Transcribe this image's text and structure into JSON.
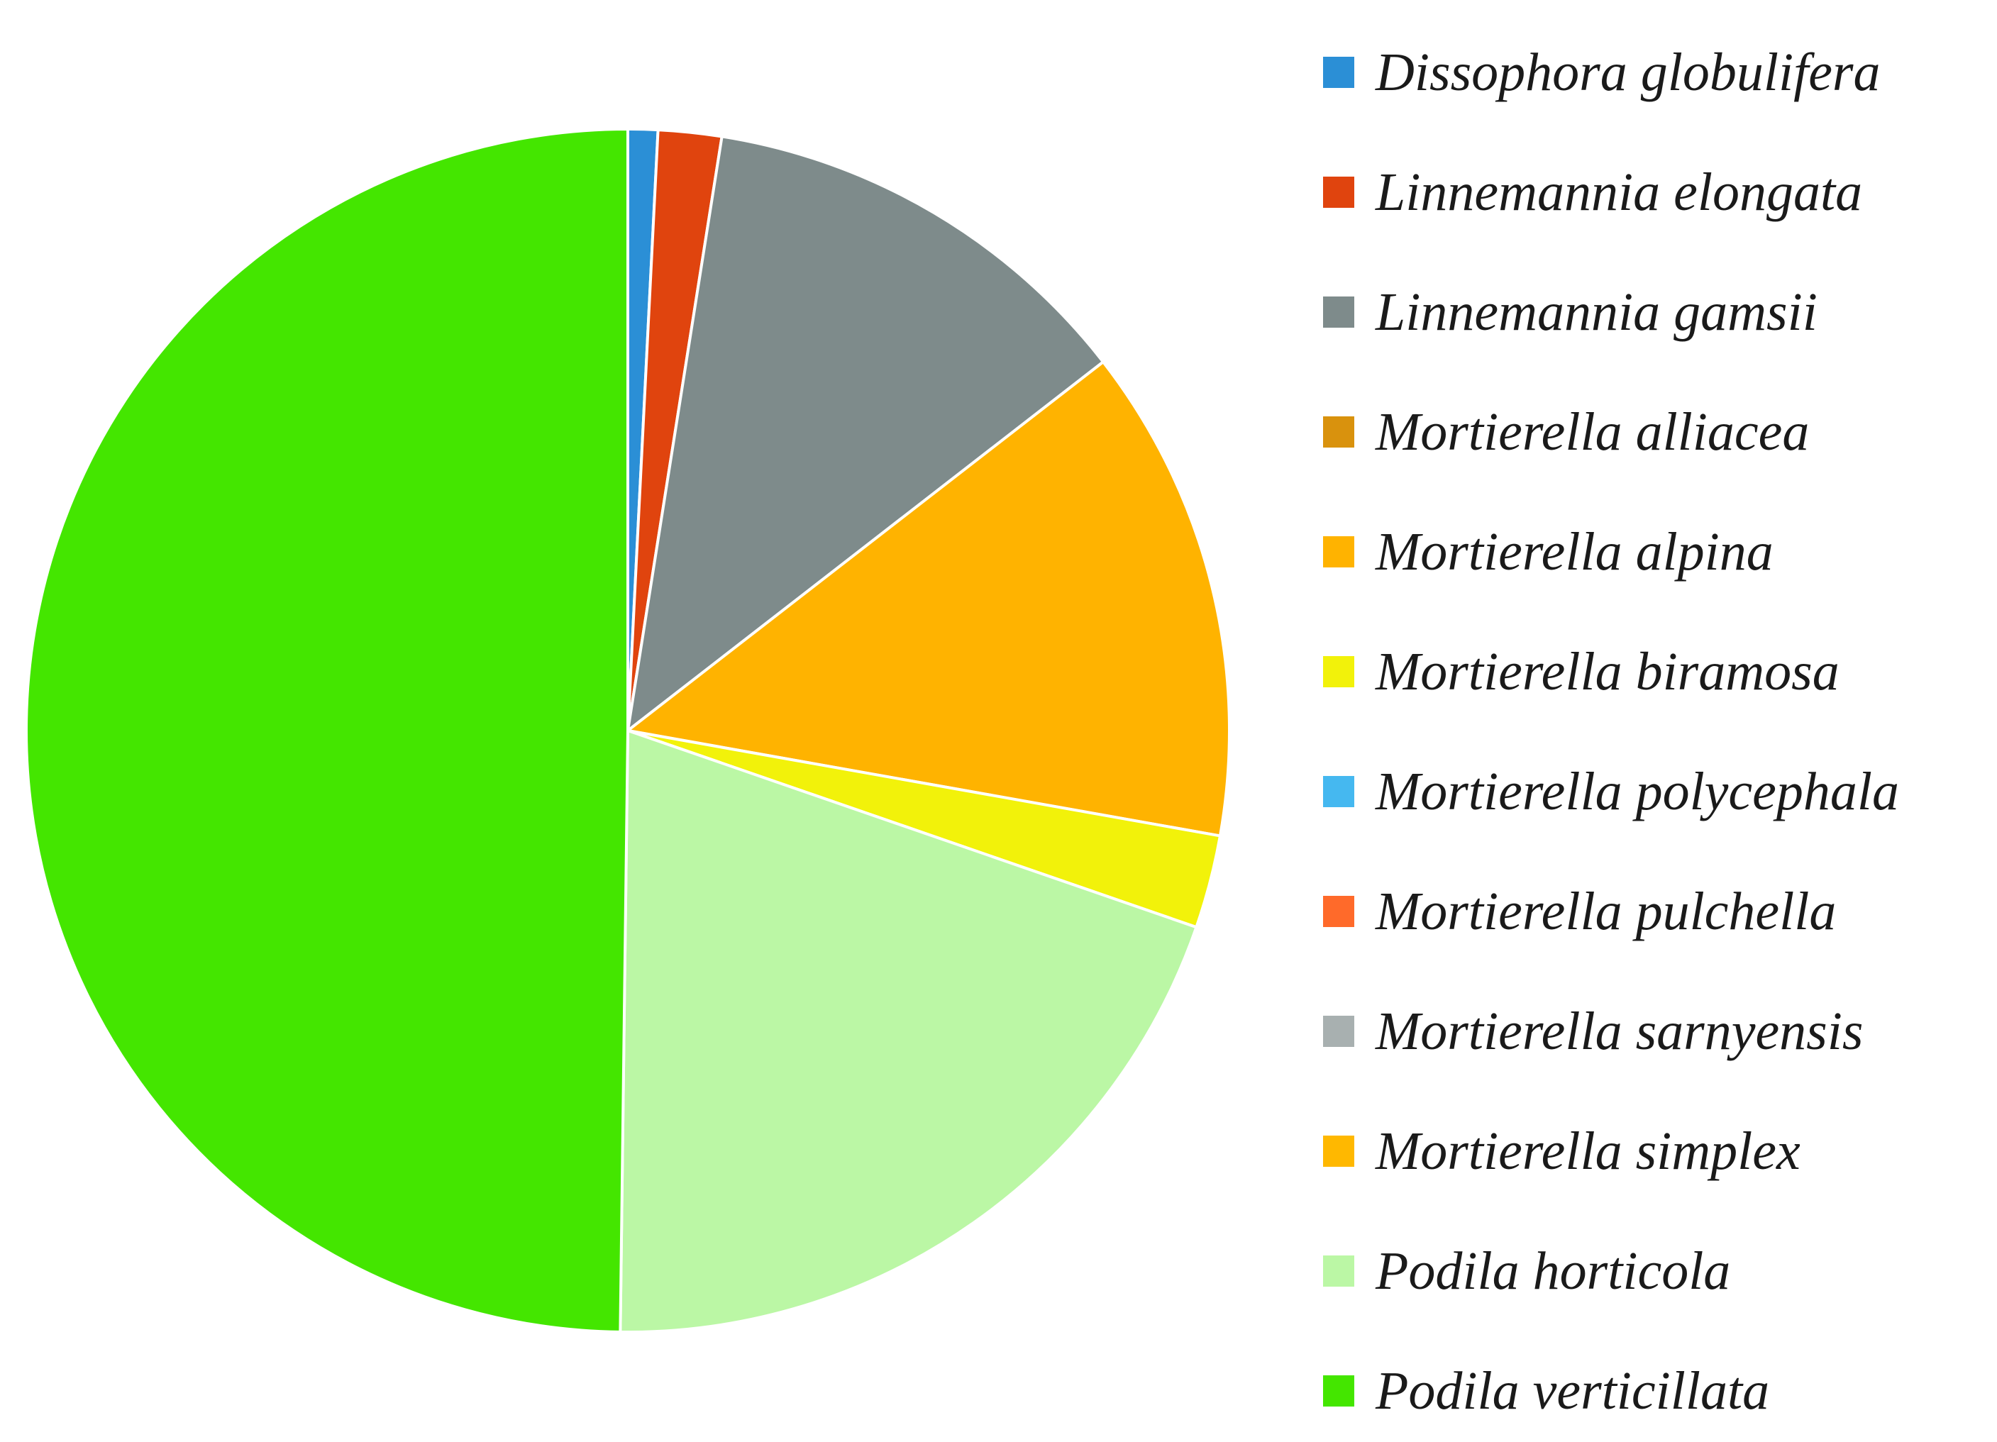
{
  "chart_data": {
    "type": "pie",
    "title": "",
    "slices": [
      {
        "label": "Dissophora globulifera",
        "value": 0.8,
        "color": "#2b8fd6"
      },
      {
        "label": "Linnemannia elongata",
        "value": 1.7,
        "color": "#e0440e"
      },
      {
        "label": "Linnemannia gamsii",
        "value": 12.0,
        "color": "#7e8b8b"
      },
      {
        "label": "Mortierella alliacea",
        "value": 0.0,
        "color": "#d9920d"
      },
      {
        "label": "Mortierella alpina",
        "value": 13.3,
        "color": "#ffb300"
      },
      {
        "label": "Mortierella biramosa",
        "value": 2.5,
        "color": "#f2f20a"
      },
      {
        "label": "Mortierella polycephala",
        "value": 0.0,
        "color": "#45b8f0"
      },
      {
        "label": "Mortierella pulchella",
        "value": 0.0,
        "color": "#ff6a2a"
      },
      {
        "label": "Mortierella sarnyensis",
        "value": 0.0,
        "color": "#a8b0b0"
      },
      {
        "label": "Mortierella simplex",
        "value": 0.0,
        "color": "#ffb800"
      },
      {
        "label": "Podila horticola",
        "value": 19.9,
        "color": "#bbf7a5"
      },
      {
        "label": "Podila verticillata",
        "value": 49.8,
        "color": "#44e600"
      }
    ],
    "start_angle_deg": 0,
    "direction": "clockwise",
    "legend_position": "right",
    "slice_border_color": "#ffffff"
  }
}
